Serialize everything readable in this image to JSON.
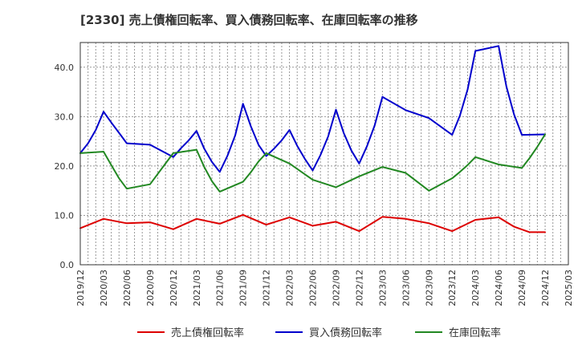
{
  "chart_data": {
    "type": "line",
    "title": "[2330]  売上債権回転率、買入債務回転率、在庫回転率の推移",
    "xlabel": "",
    "ylabel": "",
    "ylim": [
      0,
      45
    ],
    "y_ticks": [
      "0.0",
      "10.0",
      "20.0",
      "30.0",
      "40.0"
    ],
    "y_tick_values": [
      0,
      10,
      20,
      30,
      40
    ],
    "x_tick_labels": [
      "2019/12",
      "2020/03",
      "2020/06",
      "2020/09",
      "2020/12",
      "2021/03",
      "2021/06",
      "2021/09",
      "2021/12",
      "2022/03",
      "2022/06",
      "2022/09",
      "2022/12",
      "2023/03",
      "2023/06",
      "2023/09",
      "2023/12",
      "2024/03",
      "2024/06",
      "2024/09",
      "2024/12",
      "2025/03"
    ],
    "x_month_count": 63,
    "grid": true,
    "legend_position": "bottom",
    "series": [
      {
        "name": "売上債権回転率",
        "color": "#dd0000",
        "x": [
          0,
          3,
          6,
          9,
          12,
          15,
          18,
          21,
          24,
          27,
          30,
          33,
          36,
          39,
          42,
          45,
          48,
          51,
          54,
          56,
          58,
          60
        ],
        "values": [
          7.4,
          9.3,
          8.4,
          8.6,
          7.2,
          9.3,
          8.3,
          10.1,
          8.1,
          9.6,
          7.9,
          8.7,
          6.8,
          9.7,
          9.3,
          8.4,
          6.8,
          9.1,
          9.6,
          7.7,
          6.6,
          6.6
        ]
      },
      {
        "name": "買入債務回転率",
        "color": "#0000cc",
        "x": [
          0,
          1,
          2,
          3,
          4,
          5,
          6,
          9,
          12,
          13,
          14,
          15,
          16,
          17,
          18,
          19,
          20,
          21,
          22,
          23,
          24,
          25,
          26,
          27,
          28,
          29,
          30,
          31,
          32,
          33,
          34,
          35,
          36,
          37,
          38,
          39,
          40,
          42,
          45,
          48,
          49,
          50,
          51,
          54,
          55,
          56,
          57,
          60
        ],
        "values": [
          22.6,
          24.6,
          27.3,
          31.0,
          28.8,
          26.7,
          24.6,
          24.3,
          21.8,
          23.6,
          25.2,
          27.1,
          23.5,
          20.8,
          18.8,
          22.1,
          26.2,
          32.6,
          28.1,
          24.3,
          22.0,
          23.5,
          25.2,
          27.3,
          24.1,
          21.4,
          19.1,
          22.2,
          26.0,
          31.4,
          26.7,
          23.1,
          20.5,
          24.0,
          28.2,
          34.0,
          33.1,
          31.3,
          29.7,
          26.3,
          30.2,
          35.5,
          43.3,
          44.3,
          36.1,
          30.4,
          26.3,
          26.4
        ]
      },
      {
        "name": "在庫回転率",
        "color": "#228822",
        "x": [
          0,
          3,
          4,
          5,
          6,
          9,
          12,
          15,
          16,
          17,
          18,
          21,
          22,
          23,
          24,
          27,
          30,
          33,
          36,
          39,
          42,
          45,
          48,
          49,
          50,
          51,
          54,
          57,
          58,
          59,
          60
        ],
        "values": [
          22.6,
          22.9,
          20.2,
          17.5,
          15.4,
          16.3,
          22.6,
          23.3,
          19.8,
          16.9,
          14.8,
          16.8,
          18.7,
          20.9,
          22.6,
          20.5,
          17.2,
          15.7,
          17.9,
          19.8,
          18.6,
          15.0,
          17.5,
          18.8,
          20.2,
          21.8,
          20.3,
          19.6,
          21.6,
          23.9,
          26.4
        ]
      }
    ]
  }
}
